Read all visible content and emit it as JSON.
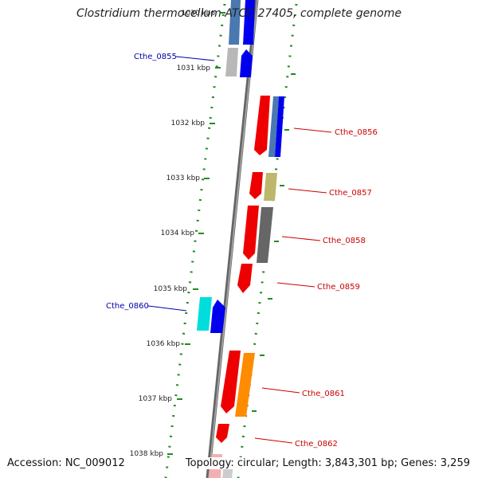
{
  "title": "Clostridium thermocellum ATCC 27405, complete genome",
  "footer": {
    "accession": "Accession: NC_009012",
    "summary": "Topology: circular; Length: 3,843,301 bp; Genes: 3,259"
  },
  "ruler": {
    "labels": [
      "1030 kbp",
      "1031 kbp",
      "1032 kbp",
      "1033 kbp",
      "1034 kbp",
      "1035 kbp",
      "1036 kbp",
      "1037 kbp",
      "1038 kbp"
    ]
  },
  "gene_labels": [
    {
      "name": "Cthe_0855",
      "color": "#0000aa"
    },
    {
      "name": "Cthe_0856",
      "color": "#cc0000"
    },
    {
      "name": "Cthe_0857",
      "color": "#cc0000"
    },
    {
      "name": "Cthe_0858",
      "color": "#cc0000"
    },
    {
      "name": "Cthe_0859",
      "color": "#cc0000"
    },
    {
      "name": "Cthe_0860",
      "color": "#0000aa"
    },
    {
      "name": "Cthe_0861",
      "color": "#cc0000"
    },
    {
      "name": "Cthe_0862",
      "color": "#cc0000"
    }
  ],
  "colors": {
    "ruler_dots": "#228b22",
    "backbone": "#777777",
    "red": "#ee0000",
    "blue": "#0000ee",
    "steel": "#4a78b0",
    "khaki": "#bdb76b",
    "gray": "#666666",
    "silver": "#b8b8b8",
    "cyan": "#00dddd",
    "orange": "#ff8c00",
    "pink": "#f4b0b0"
  }
}
